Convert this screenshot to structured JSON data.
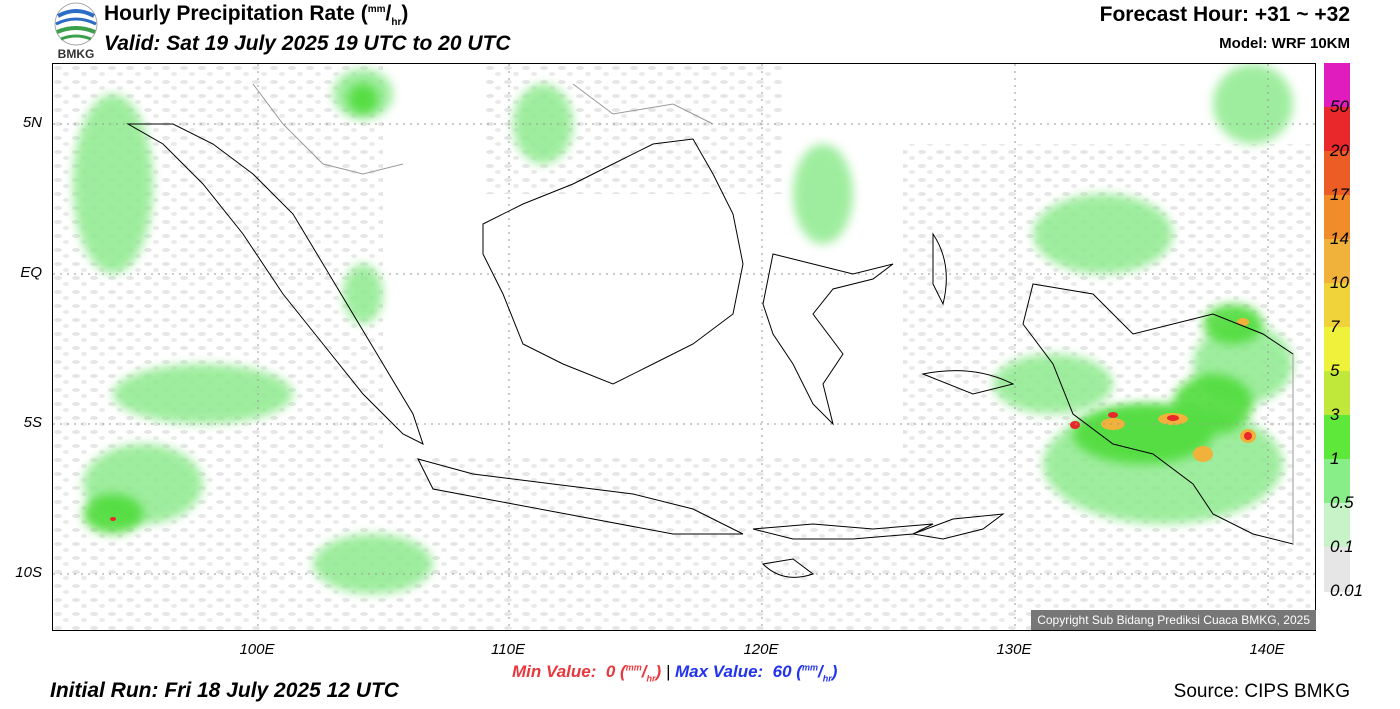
{
  "header": {
    "title": "Hourly Precipitation Rate (",
    "title_unit_sup": "mm",
    "title_unit_sub": "hr",
    "title_close": ")",
    "valid": "Valid: Sat 19 July 2025 19 UTC to 20 UTC",
    "forecast_hour": "Forecast Hour: +31 ~ +32",
    "model": "Model: WRF 10KM",
    "logo_text": "BMKG"
  },
  "axes": {
    "lat_labels": [
      "5N",
      "EQ",
      "5S",
      "10S"
    ],
    "lon_labels": [
      "100E",
      "110E",
      "120E",
      "130E",
      "140E"
    ]
  },
  "colorbar": {
    "labels": [
      "50",
      "20",
      "17",
      "14",
      "10",
      "7",
      "5",
      "3",
      "1",
      "0.5",
      "0.1",
      "0.01"
    ],
    "colors": [
      "#e01cbe",
      "#e8282a",
      "#ec5d26",
      "#f08c2a",
      "#f0b23a",
      "#f0d23a",
      "#eef23a",
      "#bfe83a",
      "#5ee83a",
      "#88ee88",
      "#c8f2c8",
      "#e6e6e6"
    ]
  },
  "map": {
    "copyright": "Copyright Sub Bidang Prediksi Cuaca BMKG, 2025"
  },
  "footer": {
    "min_label": "Min Value:",
    "min_value": "0",
    "separator": "|",
    "max_label": "Max Value:",
    "max_value": "60",
    "unit_sup": "mm",
    "unit_sub": "hr",
    "initial_run": "Initial Run: Fri 18 July 2025 12 UTC",
    "source": "Source: CIPS BMKG"
  }
}
